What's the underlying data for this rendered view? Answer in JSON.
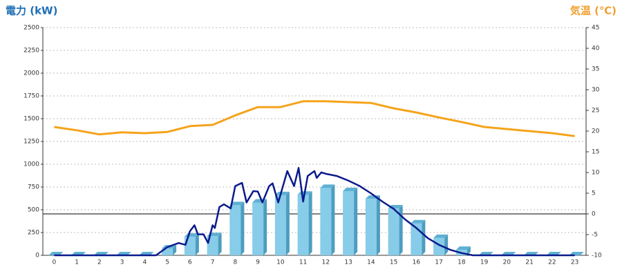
{
  "chart_data": {
    "type": "combo",
    "title": "電力 (kW)",
    "y2_title": "気温 (℃)",
    "categories": [
      "0",
      "1",
      "2",
      "3",
      "4",
      "5",
      "6",
      "7",
      "8",
      "9",
      "10",
      "11",
      "12",
      "13",
      "14",
      "15",
      "16",
      "17",
      "18",
      "19",
      "20",
      "21",
      "22",
      "23"
    ],
    "ylim": [
      0,
      2500
    ],
    "yticks": [
      0,
      250,
      500,
      750,
      1000,
      1250,
      1500,
      1750,
      2000,
      2250,
      2500
    ],
    "y2lim": [
      -10,
      45
    ],
    "y2ticks": [
      -10,
      -5,
      0,
      5,
      10,
      15,
      20,
      25,
      30,
      35,
      40,
      45
    ],
    "grid": true,
    "series": [
      {
        "type": "bar",
        "color": "#87cce8",
        "values": [
          0,
          0,
          0,
          0,
          0,
          75,
          205,
          210,
          550,
          580,
          660,
          665,
          740,
          705,
          620,
          515,
          350,
          190,
          60,
          0,
          0,
          0,
          0,
          0
        ]
      },
      {
        "type": "line",
        "color": "#0a1a8c",
        "x": [
          0,
          1,
          2,
          3,
          4,
          4.5,
          5,
          5.5,
          5.8,
          6,
          6.2,
          6.35,
          6.6,
          6.8,
          7,
          7.1,
          7.3,
          7.5,
          7.8,
          8,
          8.3,
          8.5,
          8.8,
          9,
          9.2,
          9.5,
          9.65,
          9.9,
          10.3,
          10.6,
          10.8,
          11,
          11.2,
          11.5,
          11.6,
          11.8,
          12,
          12.5,
          13,
          13.5,
          14,
          14.5,
          15,
          15.5,
          16,
          16.5,
          17,
          17.5,
          18,
          18.5,
          19,
          20,
          21,
          22,
          23
        ],
        "values": [
          0,
          0,
          0,
          0,
          0,
          0,
          90,
          135,
          115,
          265,
          330,
          230,
          230,
          135,
          330,
          300,
          530,
          560,
          515,
          760,
          795,
          580,
          705,
          700,
          580,
          760,
          790,
          580,
          925,
          760,
          960,
          590,
          870,
          925,
          850,
          910,
          895,
          870,
          820,
          760,
          680,
          590,
          510,
          395,
          300,
          190,
          115,
          60,
          25,
          0,
          0,
          0,
          0,
          0,
          0
        ]
      },
      {
        "type": "line",
        "axis": "y2",
        "color": "#f5a31a",
        "values": [
          21.0,
          20.2,
          19.2,
          19.7,
          19.5,
          19.8,
          21.2,
          21.5,
          23.8,
          25.8,
          25.8,
          27.2,
          27.2,
          27.0,
          26.8,
          25.5,
          24.5,
          23.3,
          22.2,
          21.0,
          20.5,
          20.0,
          19.5,
          18.8
        ]
      }
    ]
  }
}
